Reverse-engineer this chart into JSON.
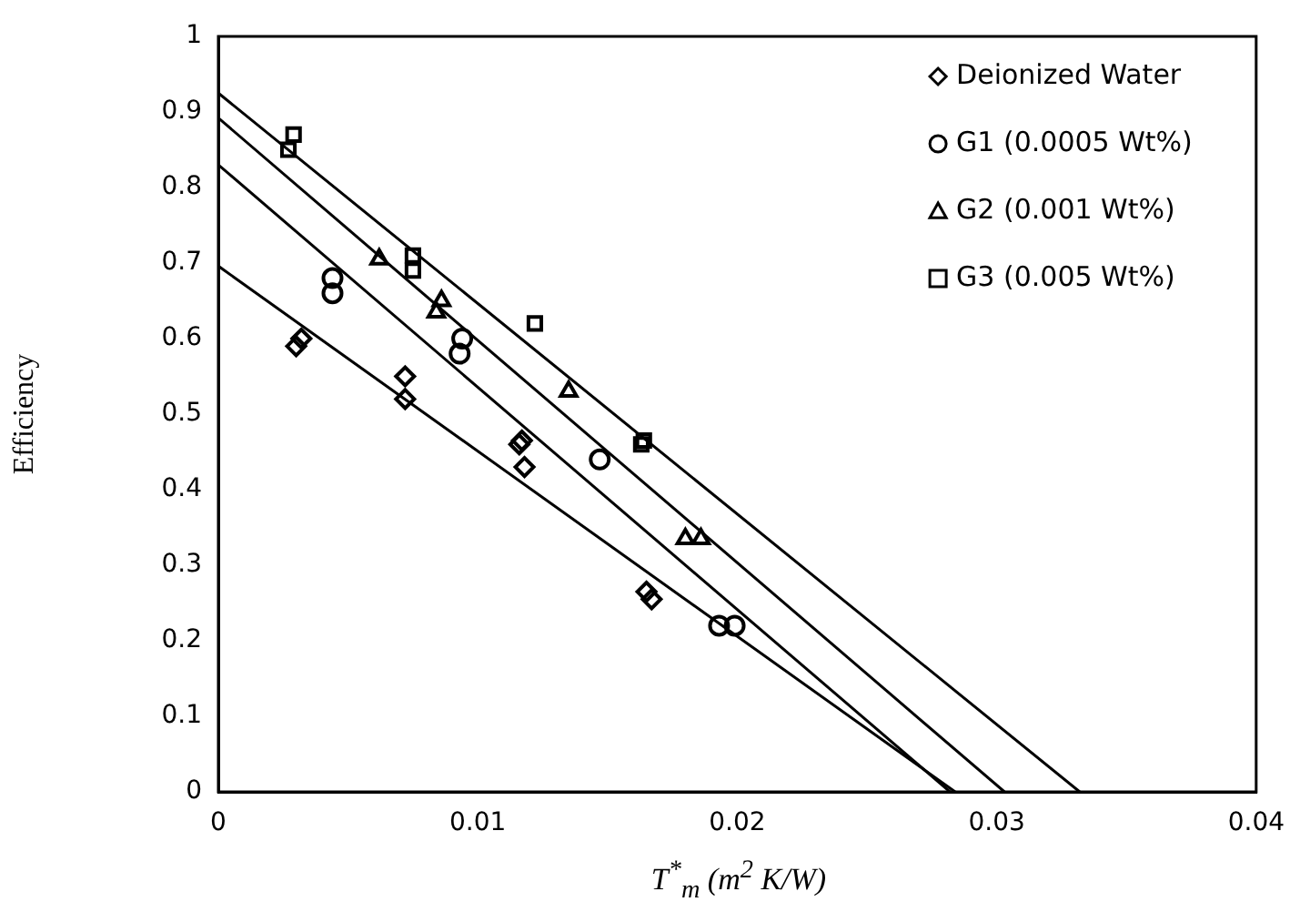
{
  "chart_data": {
    "type": "scatter",
    "xlabel": "T$^{*}$$_{m}$ (m$^{2}$ K/W)",
    "ylabel": "Efficiency",
    "xlim": [
      0,
      0.04
    ],
    "xticks": [
      0,
      0.01,
      0.02,
      0.03,
      0.04
    ],
    "ylim": [
      0,
      1
    ],
    "yticks": [
      0,
      0.1,
      0.2,
      0.3,
      0.4,
      0.5,
      0.6,
      0.7,
      0.8,
      0.9,
      1
    ],
    "grid": false,
    "legend": "top right",
    "series": [
      {
        "name": "Deionized Water",
        "color": "#000000",
        "marker": "diamond",
        "x": [
          0.003,
          0.0032,
          0.0072,
          0.0072,
          0.0116,
          0.0117,
          0.0118,
          0.0165,
          0.0167
        ],
        "values": [
          0.59,
          0.6,
          0.55,
          0.52,
          0.46,
          0.465,
          0.43,
          0.265,
          0.255
        ]
      },
      {
        "name": "G1 (0.0005 Wt%)",
        "color": "#000000",
        "marker": "circle",
        "x": [
          0.0044,
          0.0044,
          0.0094,
          0.0093,
          0.0147,
          0.0193,
          0.0199
        ],
        "values": [
          0.68,
          0.66,
          0.6,
          0.58,
          0.44,
          0.22,
          0.22
        ]
      },
      {
        "name": "G2 (0.001 Wt%)",
        "color": "#000000",
        "marker": "triangle",
        "x": [
          0.0062,
          0.0084,
          0.0086,
          0.0135,
          0.018,
          0.0186
        ],
        "values": [
          0.705,
          0.635,
          0.65,
          0.53,
          0.335,
          0.335
        ]
      },
      {
        "name": "G3 (0.005 Wt%)",
        "color": "#000000",
        "marker": "square",
        "x": [
          0.0027,
          0.0029,
          0.0075,
          0.0075,
          0.0122,
          0.0163,
          0.0164
        ],
        "values": [
          0.85,
          0.87,
          0.71,
          0.69,
          0.62,
          0.46,
          0.465
        ]
      },
      {
        "type": "line",
        "color": "#000000",
        "marker": "none",
        "x": [
          0,
          0.0284
        ],
        "values": [
          0.696,
          0
        ]
      },
      {
        "type": "line",
        "color": "#000000",
        "marker": "none",
        "x": [
          0,
          0.0282
        ],
        "values": [
          0.83,
          0
        ]
      },
      {
        "type": "line",
        "color": "#000000",
        "marker": "none",
        "x": [
          0,
          0.0303
        ],
        "values": [
          0.892,
          0
        ]
      },
      {
        "type": "line",
        "color": "#000000",
        "marker": "none",
        "x": [
          0,
          0.0332
        ],
        "values": [
          0.925,
          0
        ]
      }
    ]
  }
}
